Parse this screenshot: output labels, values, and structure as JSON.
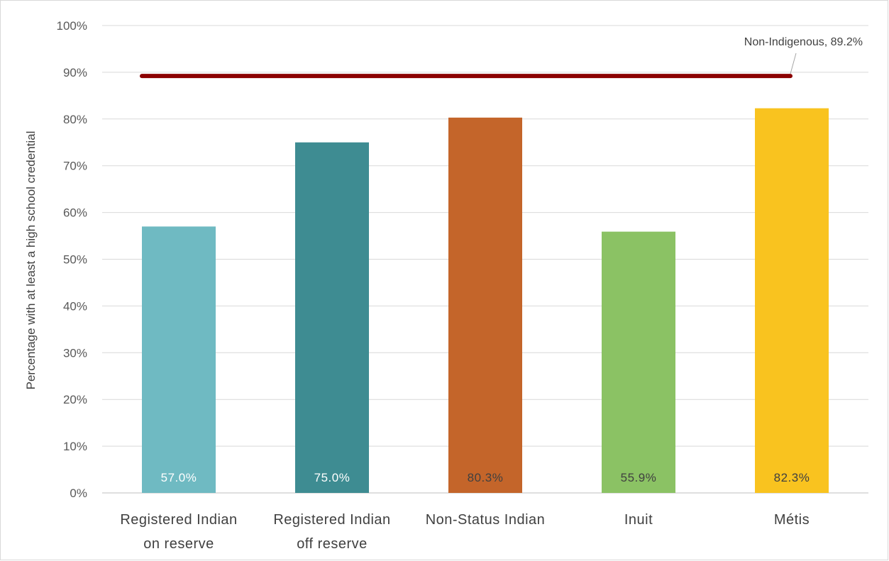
{
  "chart_data": {
    "type": "bar",
    "title": "",
    "xlabel": "",
    "ylabel": "Percentage with at least a high school credential",
    "ylim": [
      0,
      100
    ],
    "yticks": [
      "0%",
      "10%",
      "20%",
      "30%",
      "40%",
      "50%",
      "60%",
      "70%",
      "80%",
      "90%",
      "100%"
    ],
    "grid": true,
    "legend": "none",
    "categories": [
      [
        "Registered Indian",
        "on reserve"
      ],
      [
        "Registered Indian",
        "off reserve"
      ],
      [
        "Non-Status Indian"
      ],
      [
        "Inuit"
      ],
      [
        "Métis"
      ]
    ],
    "values": [
      57.0,
      75.0,
      80.3,
      55.9,
      82.3
    ],
    "data_labels": [
      "57.0%",
      "75.0%",
      "80.3%",
      "55.9%",
      "82.3%"
    ],
    "colors": [
      "#6fbac2",
      "#3e8c92",
      "#c4652a",
      "#8bc264",
      "#f9c31f"
    ],
    "label_colors": [
      "#ffffff",
      "#ffffff",
      "#404040",
      "#404040",
      "#404040"
    ],
    "reference_line": {
      "value": 89.2,
      "label": "Non-Indigenous, 89.2%",
      "color": "#8b0000"
    }
  }
}
